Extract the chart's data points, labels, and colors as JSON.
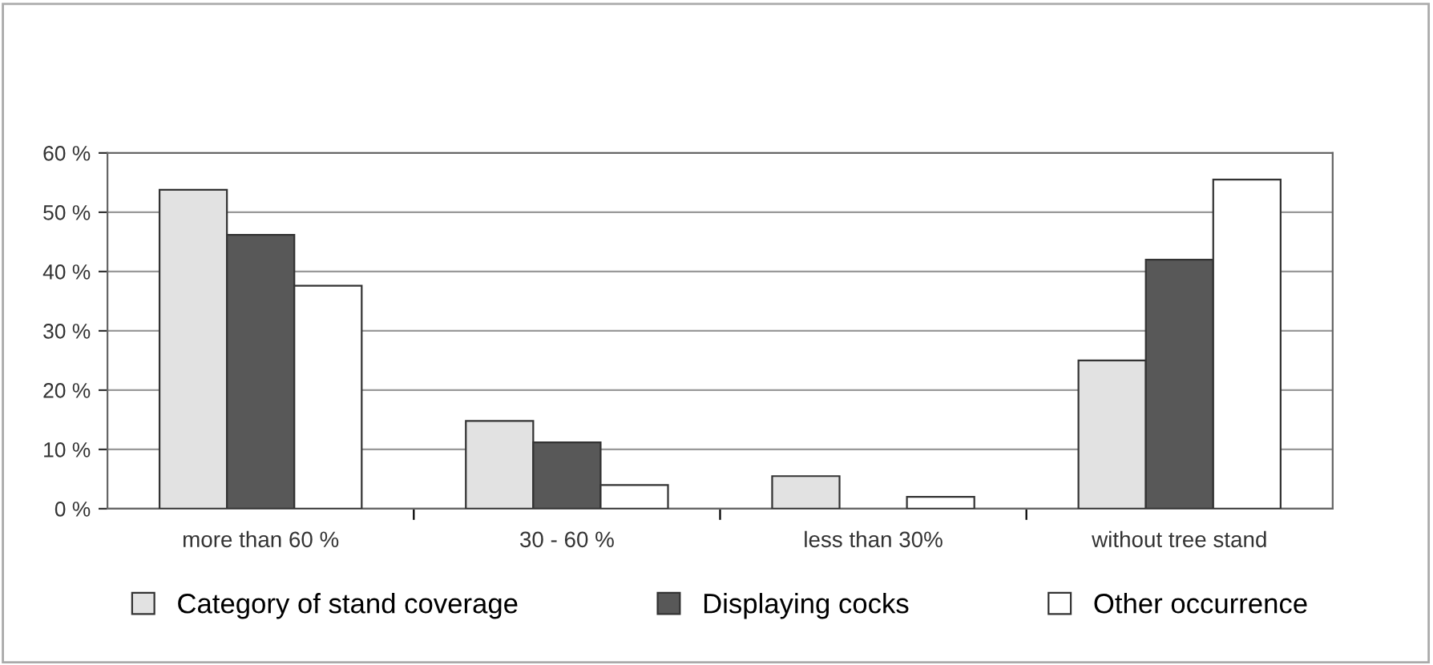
{
  "chart_data": {
    "type": "bar",
    "categories": [
      "more than 60 %",
      "30 - 60 %",
      "less than 30%",
      "without tree stand"
    ],
    "series": [
      {
        "name": "Category of stand coverage",
        "color": "#e2e2e2",
        "values": [
          53.8,
          14.8,
          5.5,
          25
        ]
      },
      {
        "name": "Displaying cocks",
        "color": "#585858",
        "values": [
          46.2,
          11.2,
          null,
          42
        ]
      },
      {
        "name": "Other occurrence",
        "color": "#ffffff",
        "values": [
          37.6,
          4.0,
          2.0,
          55.5
        ]
      }
    ],
    "ylim": [
      0,
      60
    ],
    "yticks": [
      {
        "value": 0,
        "label": "0 %"
      },
      {
        "value": 10,
        "label": "10 %"
      },
      {
        "value": 20,
        "label": "20 %"
      },
      {
        "value": 30,
        "label": "30 %"
      },
      {
        "value": 40,
        "label": "40 %"
      },
      {
        "value": 50,
        "label": "50 %"
      },
      {
        "value": 60,
        "label": "60 %"
      }
    ],
    "grid": "y",
    "legend": "bottom"
  }
}
